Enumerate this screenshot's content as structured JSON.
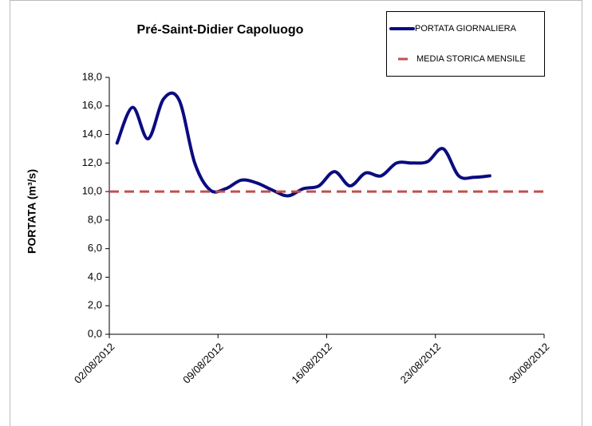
{
  "chart_data": {
    "type": "line",
    "title": "Pré-Saint-Didier Capoluogo",
    "y_label": "PORTATA (m³/s)",
    "series": [
      {
        "name": "PORTATA GIORNALIERA",
        "color": "#0b0b80",
        "style": "solid",
        "x": [
          "02/08/2012",
          "03/08/2012",
          "04/08/2012",
          "05/08/2012",
          "06/08/2012",
          "07/08/2012",
          "08/08/2012",
          "09/08/2012",
          "10/08/2012",
          "11/08/2012",
          "12/08/2012",
          "13/08/2012",
          "14/08/2012",
          "15/08/2012",
          "16/08/2012",
          "17/08/2012",
          "18/08/2012",
          "19/08/2012",
          "20/08/2012",
          "21/08/2012",
          "22/08/2012",
          "23/08/2012",
          "24/08/2012",
          "25/08/2012",
          "26/08/2012"
        ],
        "values": [
          13.4,
          15.9,
          13.7,
          16.5,
          16.4,
          12.0,
          10.1,
          10.2,
          10.8,
          10.6,
          10.1,
          9.7,
          10.2,
          10.4,
          11.4,
          10.4,
          11.3,
          11.1,
          12.0,
          12.0,
          12.1,
          13.0,
          11.1,
          11.0,
          11.1
        ]
      },
      {
        "name": "MEDIA STORICA MENSILE",
        "color": "#c0504d",
        "style": "dashed",
        "x": [
          "02/08/2012",
          "30/08/2012"
        ],
        "values": [
          10.0,
          10.0
        ]
      }
    ],
    "xlim": [
      "02/08/2012",
      "30/08/2012"
    ],
    "xticks": [
      "02/08/2012",
      "09/08/2012",
      "16/08/2012",
      "23/08/2012",
      "30/08/2012"
    ],
    "ylim": [
      0,
      18
    ],
    "yticks": [
      {
        "value": 0,
        "label": "0,0"
      },
      {
        "value": 2,
        "label": "2,0"
      },
      {
        "value": 4,
        "label": "4,0"
      },
      {
        "value": 6,
        "label": "6,0"
      },
      {
        "value": 8,
        "label": "8,0"
      },
      {
        "value": 10,
        "label": "10,0"
      },
      {
        "value": 12,
        "label": "12,0"
      },
      {
        "value": 14,
        "label": "14,0"
      },
      {
        "value": 16,
        "label": "16,0"
      },
      {
        "value": 18,
        "label": "18,0"
      }
    ],
    "grid": false,
    "legend": "top-right"
  }
}
